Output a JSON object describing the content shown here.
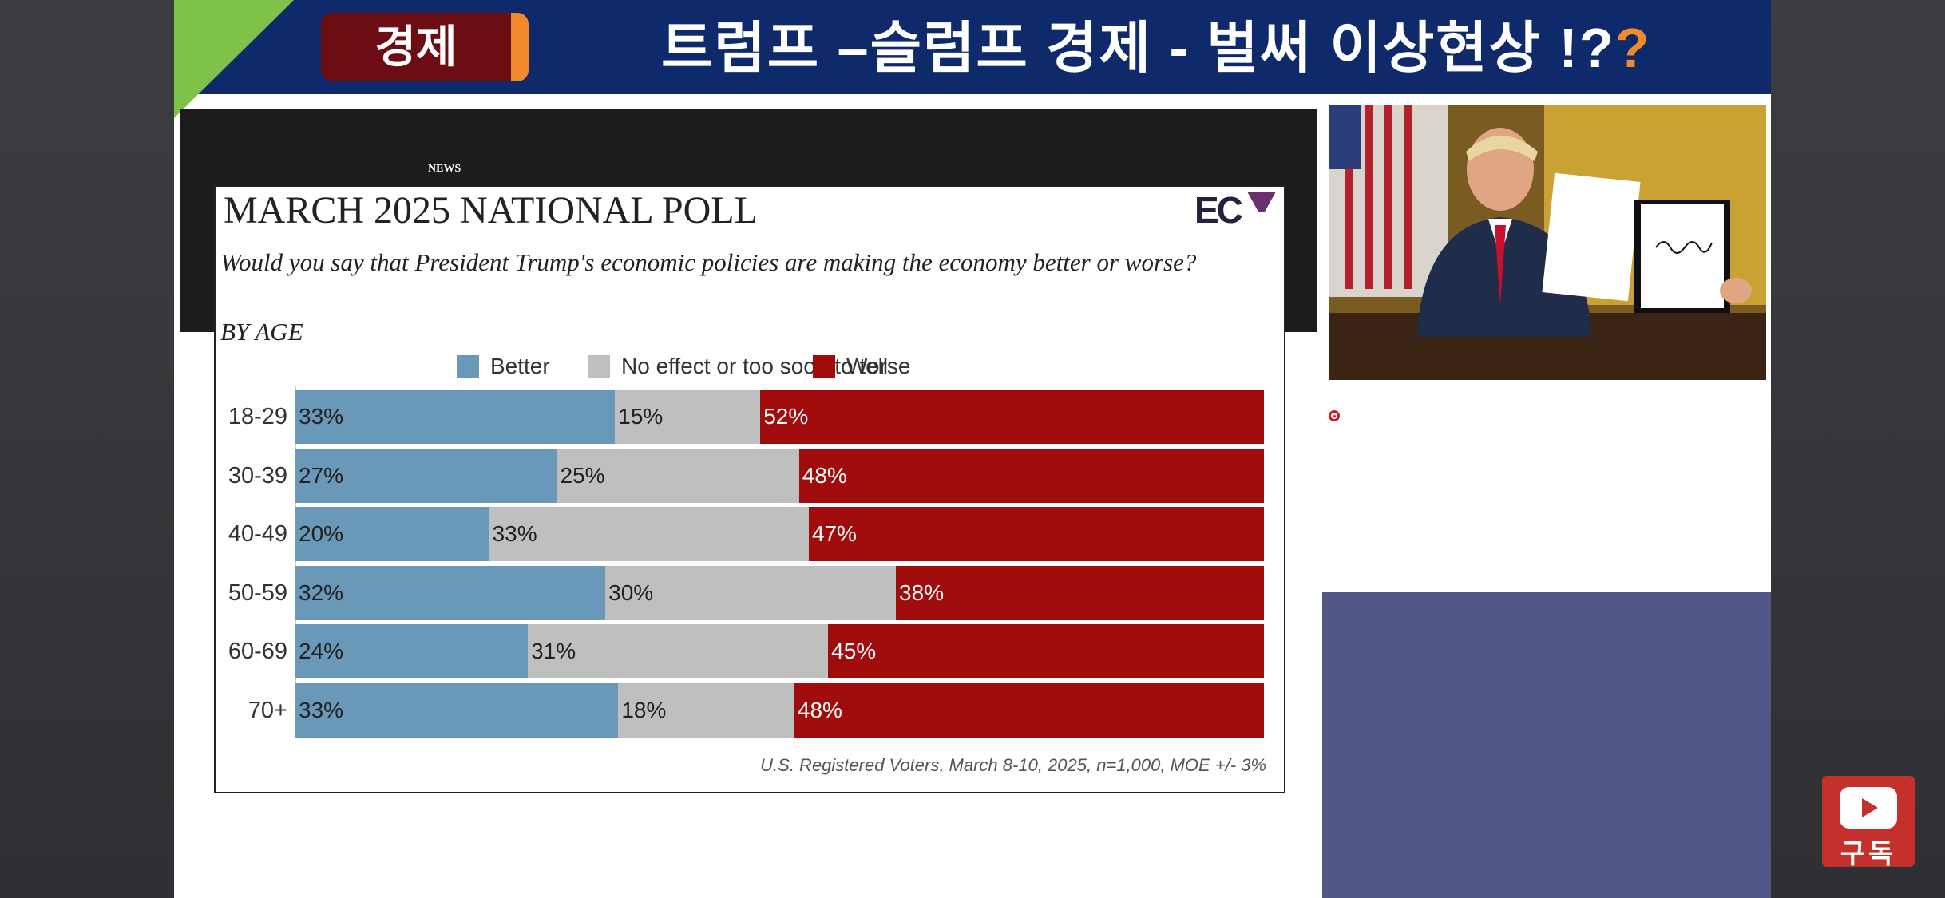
{
  "header": {
    "tag": "경제",
    "title_main": "트럼프 –슬럼프 경제  - 벌써 이상현상 !?",
    "title_q": "?"
  },
  "source_label": "NEWS",
  "poll": {
    "title": "MARCH 2025 NATIONAL POLL",
    "logo": "EC",
    "question": "Would you say that President Trump's economic policies are making the economy better or worse?",
    "breakdown": "BY AGE",
    "footnote": "U.S. Registered Voters, March 8-10, 2025, n=1,000, MOE +/- 3%"
  },
  "chart_data": {
    "type": "bar",
    "orientation": "horizontal",
    "stacked": true,
    "percent": true,
    "categories": [
      "18-29",
      "30-39",
      "40-49",
      "50-59",
      "60-69",
      "70+"
    ],
    "series": [
      {
        "name": "Better",
        "color": "#6a98b9",
        "values": [
          33,
          27,
          20,
          32,
          24,
          33
        ]
      },
      {
        "name": "No effect or too soon to tell",
        "color": "#bfbfbf",
        "values": [
          15,
          25,
          33,
          30,
          31,
          18
        ]
      },
      {
        "name": "Worse",
        "color": "#a00b0b",
        "values": [
          52,
          48,
          47,
          38,
          45,
          48
        ]
      }
    ],
    "legend_position": "top-center"
  },
  "subscribe": {
    "label": "구독"
  },
  "colors": {
    "header": "#0f2a6b",
    "tag": "#6b0d12",
    "accent": "#f08a2c",
    "green": "#7fc24a",
    "panel": "#525686"
  }
}
